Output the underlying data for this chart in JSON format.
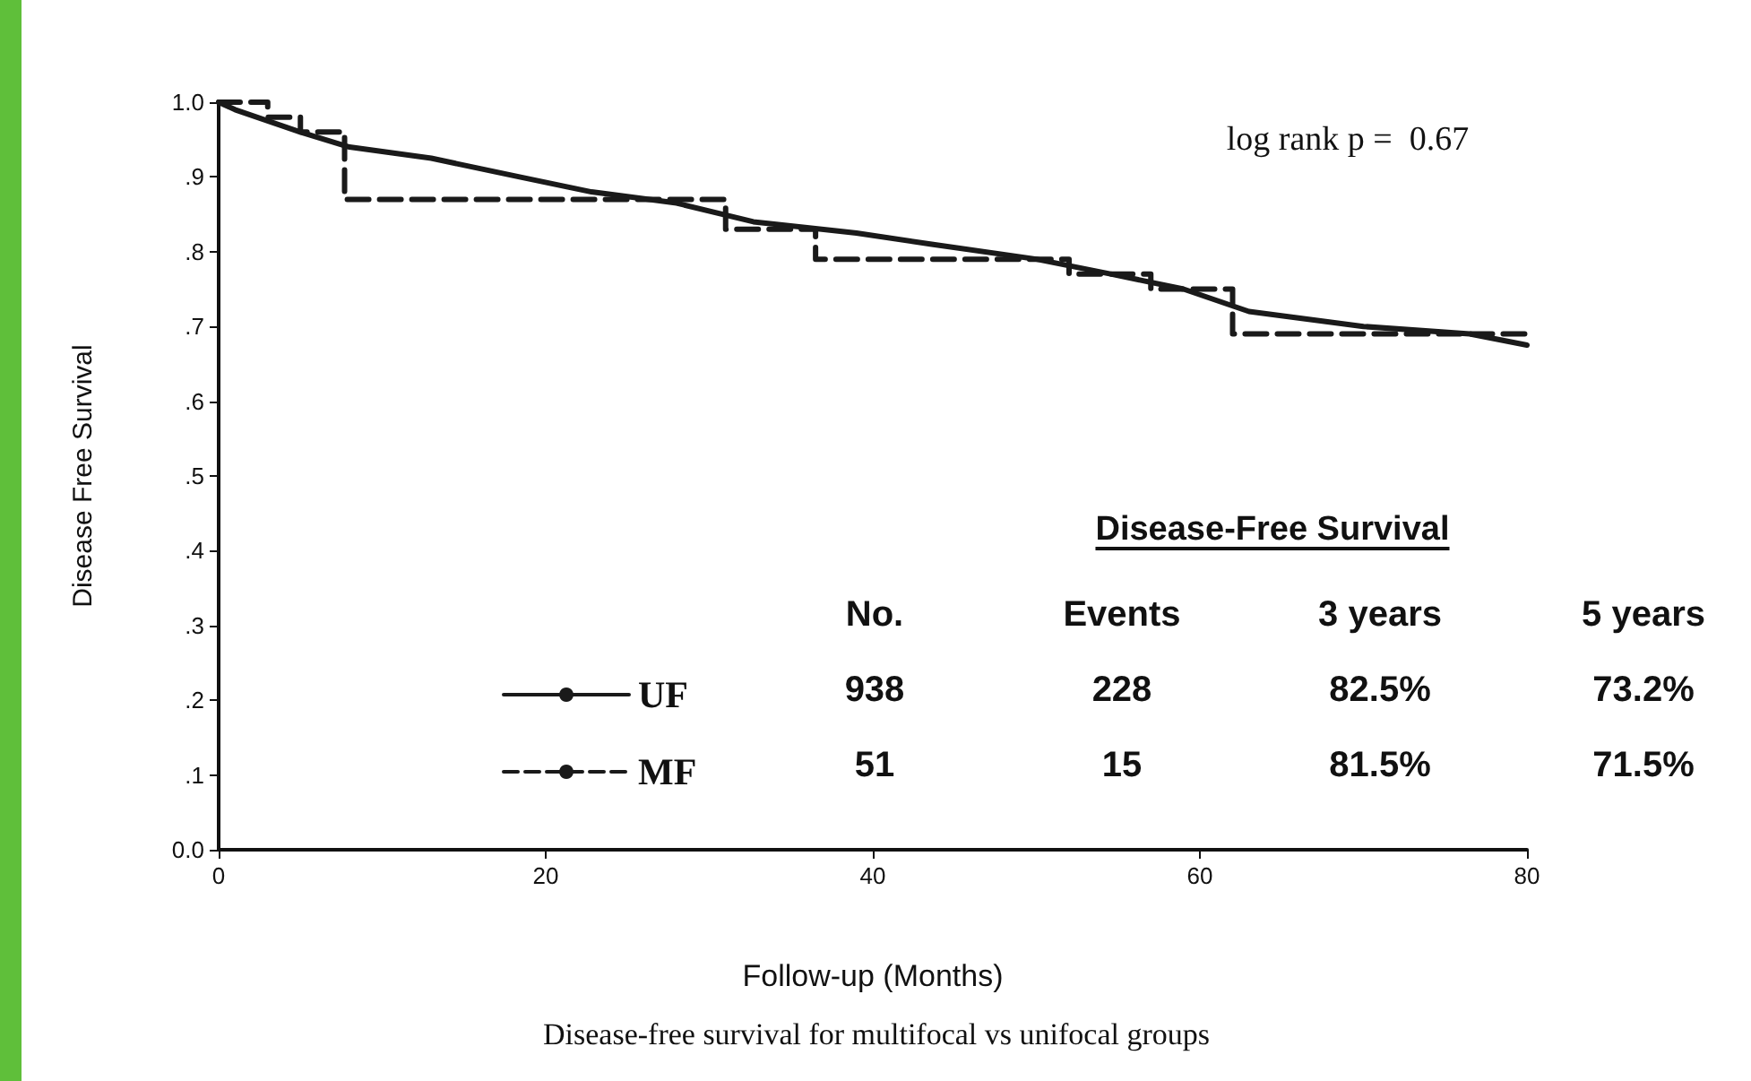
{
  "chart_data": {
    "type": "line",
    "xlabel": "Follow-up (Months)",
    "ylabel": "Disease Free Survival",
    "annotations": [
      "log rank p =  0.67",
      "Disease-free survival for multifocal vs unifocal groups",
      "Disease-Free Survival",
      "No.",
      "Events",
      "3 years",
      "5 years",
      "938",
      "228",
      "82.5%",
      "73.2%",
      "51",
      "15",
      "81.5%",
      "71.5%"
    ],
    "series": [
      {
        "name": "UF",
        "color": "#1a1a1a",
        "line_style": "solid",
        "x": [
          0,
          1,
          3,
          5,
          8,
          13,
          18.4,
          22.8,
          28,
          32.7,
          39,
          43.6,
          50,
          54.6,
          59,
          63,
          70,
          76.5,
          80
        ],
        "values": [
          1.0,
          0.99,
          0.975,
          0.96,
          0.94,
          0.925,
          0.9,
          0.88,
          0.865,
          0.84,
          0.825,
          0.81,
          0.79,
          0.77,
          0.75,
          0.72,
          0.7,
          0.69,
          0.675
        ]
      },
      {
        "name": "MF",
        "type": "step",
        "color": "#1a1a1a",
        "line_style": "dashed",
        "x": [
          0,
          3,
          5,
          7.7,
          31,
          36.5,
          52,
          57,
          62,
          80
        ],
        "values": [
          1.0,
          0.98,
          0.96,
          0.87,
          0.83,
          0.79,
          0.77,
          0.75,
          0.69,
          0.69
        ]
      }
    ],
    "xlim": [
      0,
      80
    ],
    "xticks": [
      0,
      20,
      40,
      60,
      80
    ],
    "ylim": [
      0,
      1
    ],
    "yticks": [
      {
        "value": 0,
        "label": "0.0"
      },
      {
        "value": 0.1,
        "label": ".1"
      },
      {
        "value": 0.2,
        "label": ".2"
      },
      {
        "value": 0.3,
        "label": ".3"
      },
      {
        "value": 0.4,
        "label": ".4"
      },
      {
        "value": 0.5,
        "label": ".5"
      },
      {
        "value": 0.6,
        "label": ".6"
      },
      {
        "value": 0.7,
        "label": ".7"
      },
      {
        "value": 0.8,
        "label": ".8"
      },
      {
        "value": 0.9,
        "label": ".9"
      },
      {
        "value": 1,
        "label": "1.0"
      }
    ],
    "grid": false,
    "legend": "bottom left",
    "marker": "none"
  }
}
